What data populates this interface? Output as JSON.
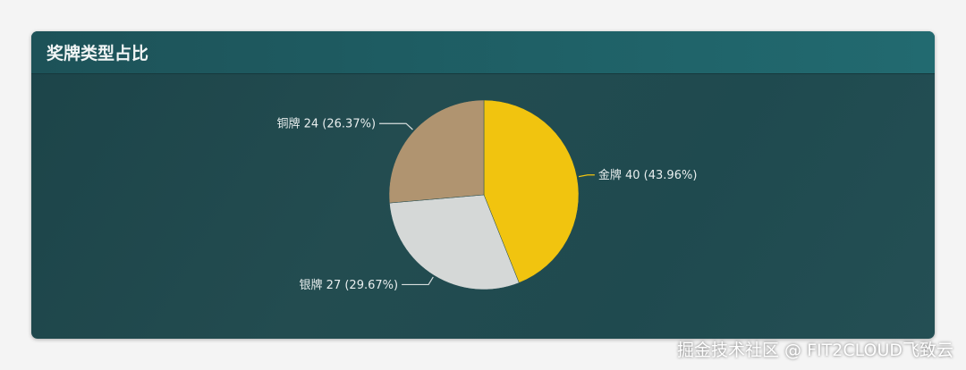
{
  "chart_data": {
    "type": "pie",
    "title": "奖牌类型占比",
    "slices": [
      {
        "name": "金牌",
        "value": 40,
        "percent": "43.96%",
        "color": "#f1c40f",
        "label": "金牌 40 (43.96%)"
      },
      {
        "name": "银牌",
        "value": 27,
        "percent": "29.67%",
        "color": "#d5d8d7",
        "label": "银牌 27 (29.67%)"
      },
      {
        "name": "铜牌",
        "value": 24,
        "percent": "26.37%",
        "color": "#b09470",
        "label": "铜牌 24 (26.37%)"
      }
    ],
    "start_angle": "top",
    "direction": "clockwise"
  },
  "watermark": "掘金技术社区 @ FIT2CLOUD飞致云"
}
